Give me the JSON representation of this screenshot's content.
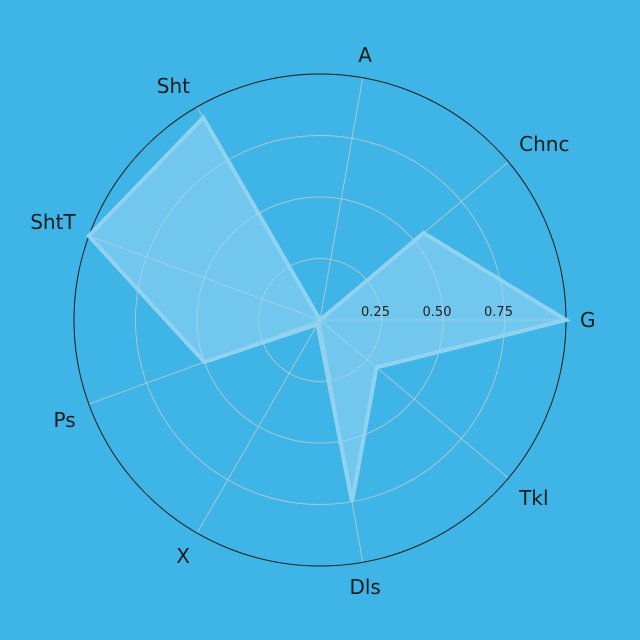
{
  "chart_data": {
    "type": "radar",
    "categories": [
      "G",
      "Chnc",
      "A",
      "Sht",
      "ShtT",
      "Ps",
      "X",
      "Dls",
      "Tkl"
    ],
    "series": [
      {
        "values": [
          1.0,
          0.55,
          0.0,
          0.95,
          1.0,
          0.5,
          0.02,
          0.75,
          0.3
        ]
      }
    ],
    "radial_ticks": [
      0.25,
      0.5,
      0.75
    ],
    "radial_tick_labels": [
      "0.25",
      "0.50",
      "0.75"
    ],
    "rlim": [
      0,
      1
    ],
    "angles_deg": [
      0,
      40,
      80,
      120,
      160,
      200,
      240,
      280,
      320
    ],
    "grid": true,
    "colors": {
      "background": "#3fb4e6",
      "fill": "#9ad7f2",
      "stroke": "#8fd3f1",
      "grid": "#b9c9d3",
      "outer_ring": "#1b1b1b"
    }
  }
}
